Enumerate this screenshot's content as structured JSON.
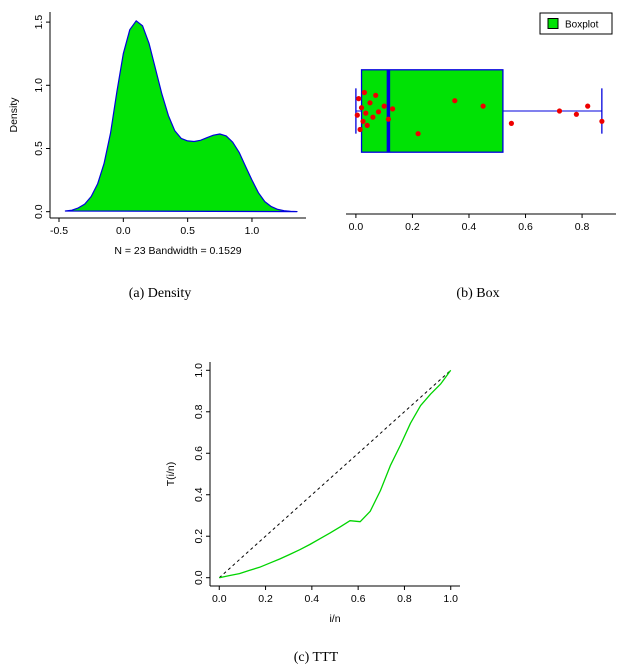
{
  "figure": {
    "captions": {
      "a": "(a) Density",
      "b": "(b) Box",
      "c": "(c) TTT"
    }
  },
  "chart_data": [
    {
      "id": "density",
      "type": "area",
      "title": "",
      "ylabel": "Density",
      "xlabel": "N = 23   Bandwidth = 0.1529",
      "xlim": [
        -0.57,
        1.42
      ],
      "ylim": [
        -0.05,
        1.58
      ],
      "xticks": [
        "-0.5",
        "0.0",
        "0.5",
        "1.0"
      ],
      "xtick_vals": [
        -0.5,
        0.0,
        0.5,
        1.0
      ],
      "yticks": [
        "0.0",
        "0.5",
        "1.0",
        "1.5"
      ],
      "ytick_vals": [
        0.0,
        0.5,
        1.0,
        1.5
      ],
      "fill": "#00e205",
      "stroke": "#0000dd",
      "x": [
        -0.45,
        -0.4,
        -0.35,
        -0.3,
        -0.25,
        -0.2,
        -0.15,
        -0.1,
        -0.05,
        0.0,
        0.05,
        0.1,
        0.15,
        0.2,
        0.25,
        0.3,
        0.35,
        0.4,
        0.45,
        0.5,
        0.55,
        0.6,
        0.65,
        0.7,
        0.75,
        0.8,
        0.85,
        0.9,
        0.95,
        1.0,
        1.05,
        1.1,
        1.15,
        1.2,
        1.25,
        1.3,
        1.35
      ],
      "y": [
        0.005,
        0.012,
        0.03,
        0.06,
        0.12,
        0.22,
        0.38,
        0.62,
        0.95,
        1.25,
        1.44,
        1.51,
        1.47,
        1.33,
        1.13,
        0.93,
        0.76,
        0.64,
        0.58,
        0.56,
        0.555,
        0.565,
        0.585,
        0.605,
        0.615,
        0.6,
        0.55,
        0.47,
        0.36,
        0.25,
        0.15,
        0.08,
        0.04,
        0.018,
        0.008,
        0.003,
        0.001
      ]
    },
    {
      "id": "box",
      "type": "boxplot",
      "orientation": "horizontal",
      "legend": "Boxplot",
      "legend_position": "topright",
      "xlim": [
        -0.035,
        0.92
      ],
      "xticks": [
        "0.0",
        "0.2",
        "0.4",
        "0.6",
        "0.8"
      ],
      "xtick_vals": [
        0.0,
        0.2,
        0.4,
        0.6,
        0.8
      ],
      "box": {
        "min": 0.0,
        "q1": 0.02,
        "median": 0.115,
        "q3": 0.52,
        "max": 0.87
      },
      "fill": "#00e205",
      "border": "#0000dd",
      "point_color": "#ee0000",
      "points": [
        [
          0.005,
          0.1
        ],
        [
          0.01,
          -0.3
        ],
        [
          0.015,
          0.45
        ],
        [
          0.02,
          -0.08
        ],
        [
          0.025,
          0.25
        ],
        [
          0.03,
          -0.45
        ],
        [
          0.035,
          0.05
        ],
        [
          0.04,
          0.35
        ],
        [
          0.05,
          -0.2
        ],
        [
          0.06,
          0.15
        ],
        [
          0.07,
          -0.38
        ],
        [
          0.08,
          0.02
        ],
        [
          0.1,
          -0.12
        ],
        [
          0.115,
          0.2
        ],
        [
          0.13,
          -0.05
        ],
        [
          0.22,
          0.55
        ],
        [
          0.35,
          -0.25
        ],
        [
          0.45,
          -0.12
        ],
        [
          0.55,
          0.3
        ],
        [
          0.72,
          0.0
        ],
        [
          0.78,
          0.08
        ],
        [
          0.82,
          -0.12
        ],
        [
          0.87,
          0.25
        ]
      ]
    },
    {
      "id": "ttt",
      "type": "line",
      "xlabel": "i/n",
      "ylabel": "T(i/n)",
      "xlim": [
        -0.04,
        1.04
      ],
      "ylim": [
        -0.04,
        1.04
      ],
      "xticks": [
        "0.0",
        "0.2",
        "0.4",
        "0.6",
        "0.8",
        "1.0"
      ],
      "xtick_vals": [
        0.0,
        0.2,
        0.4,
        0.6,
        0.8,
        1.0
      ],
      "yticks": [
        "0.0",
        "0.2",
        "0.4",
        "0.6",
        "0.8",
        "1.0"
      ],
      "ytick_vals": [
        0.0,
        0.2,
        0.4,
        0.6,
        0.8,
        1.0
      ],
      "line_color": "#00d400",
      "diagonal": {
        "style": "dashed",
        "color": "#000000",
        "from": [
          0,
          0
        ],
        "to": [
          1,
          1
        ]
      },
      "x": [
        0.0,
        0.043,
        0.087,
        0.13,
        0.174,
        0.217,
        0.261,
        0.304,
        0.348,
        0.391,
        0.435,
        0.478,
        0.522,
        0.565,
        0.609,
        0.652,
        0.696,
        0.739,
        0.783,
        0.826,
        0.87,
        0.913,
        0.957,
        1.0
      ],
      "y": [
        0.0,
        0.01,
        0.02,
        0.035,
        0.05,
        0.07,
        0.09,
        0.112,
        0.135,
        0.16,
        0.188,
        0.215,
        0.245,
        0.275,
        0.27,
        0.32,
        0.42,
        0.54,
        0.64,
        0.745,
        0.83,
        0.885,
        0.935,
        1.0
      ]
    }
  ]
}
